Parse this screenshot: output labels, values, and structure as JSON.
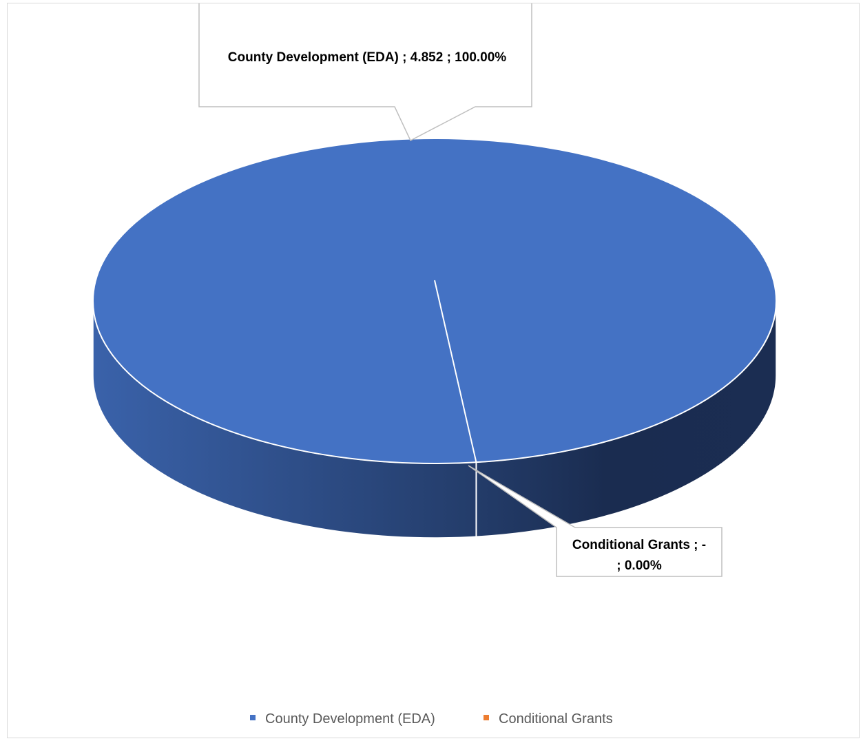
{
  "chart_data": {
    "type": "pie",
    "style": "3d",
    "slices": [
      {
        "name": "County Development (EDA)",
        "value": 4.852,
        "value_label": "4.852",
        "percent_label": "100.00%",
        "color": "#4472c4"
      },
      {
        "name": "Conditional Grants",
        "value": 0,
        "value_label": "-",
        "percent_label": "0.00%",
        "color": "#ed7d31"
      }
    ],
    "data_labels": [
      "County Development (EDA) ;  4.852 ; 100.00%",
      "Conditional Grants ;  -",
      "; 0.00%"
    ],
    "legend": {
      "position": "bottom",
      "entries": [
        "County Development (EDA)",
        "Conditional Grants"
      ]
    }
  }
}
